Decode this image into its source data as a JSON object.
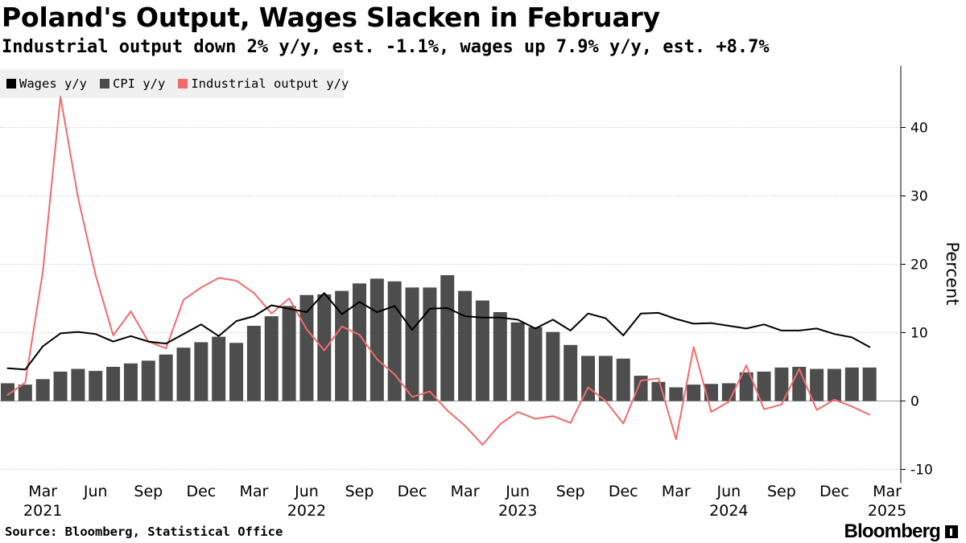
{
  "header": {
    "title": "Poland's Output, Wages Slacken in February",
    "subtitle": "Industrial output down 2% y/y, est. -1.1%, wages up 7.9% y/y, est. +8.7%"
  },
  "footer": {
    "source": "Source: Bloomberg, Statistical Office",
    "brand": "Bloomberg"
  },
  "colors": {
    "wages": "#000000",
    "cpi": "#4d4d4d",
    "industrial": "#f26b6b",
    "legend_bg": "#f0f0f0",
    "grid": "#bdbdbd"
  },
  "chart_data": {
    "type": "bar",
    "title": "Poland's Output, Wages Slacken in February",
    "ylabel": "Percent",
    "xlabel": "",
    "ylim": [
      -12,
      49
    ],
    "yticks": [
      -10,
      0,
      10,
      20,
      30,
      40
    ],
    "grid": true,
    "legend_position": "top-left",
    "x_start": "2021-01",
    "x_tick_labels": [
      {
        "month_index": 2,
        "month": "Mar",
        "year": "2021"
      },
      {
        "month_index": 5,
        "month": "Jun",
        "year": ""
      },
      {
        "month_index": 8,
        "month": "Sep",
        "year": ""
      },
      {
        "month_index": 11,
        "month": "Dec",
        "year": ""
      },
      {
        "month_index": 14,
        "month": "Mar",
        "year": ""
      },
      {
        "month_index": 17,
        "month": "Jun",
        "year": "2022"
      },
      {
        "month_index": 20,
        "month": "Sep",
        "year": ""
      },
      {
        "month_index": 23,
        "month": "Dec",
        "year": ""
      },
      {
        "month_index": 26,
        "month": "Mar",
        "year": ""
      },
      {
        "month_index": 29,
        "month": "Jun",
        "year": "2023"
      },
      {
        "month_index": 32,
        "month": "Sep",
        "year": ""
      },
      {
        "month_index": 35,
        "month": "Dec",
        "year": ""
      },
      {
        "month_index": 38,
        "month": "Mar",
        "year": ""
      },
      {
        "month_index": 41,
        "month": "Jun",
        "year": "2024"
      },
      {
        "month_index": 44,
        "month": "Sep",
        "year": ""
      },
      {
        "month_index": 47,
        "month": "Dec",
        "year": ""
      },
      {
        "month_index": 50,
        "month": "Mar",
        "year": "2025"
      }
    ],
    "series": [
      {
        "name": "Wages y/y",
        "kind": "line",
        "color": "#000000",
        "values": [
          4.8,
          4.6,
          8.0,
          9.9,
          10.1,
          9.8,
          8.7,
          9.5,
          8.7,
          8.4,
          9.8,
          11.2,
          9.5,
          11.7,
          12.4,
          14.0,
          13.5,
          13.0,
          15.8,
          12.7,
          14.5,
          13.0,
          13.9,
          10.4,
          13.5,
          13.6,
          12.4,
          12.2,
          12.2,
          11.9,
          10.6,
          11.9,
          10.3,
          12.8,
          12.1,
          9.6,
          12.8,
          12.9,
          12.0,
          11.3,
          11.4,
          11.0,
          10.6,
          11.2,
          10.3,
          10.3,
          10.6,
          9.8,
          9.3,
          7.9
        ]
      },
      {
        "name": "CPI y/y",
        "kind": "bar",
        "color": "#4d4d4d",
        "values": [
          2.6,
          2.4,
          3.2,
          4.3,
          4.7,
          4.4,
          5.0,
          5.5,
          5.9,
          6.8,
          7.8,
          8.6,
          9.4,
          8.5,
          11.0,
          12.4,
          13.9,
          15.5,
          15.6,
          16.1,
          17.2,
          17.9,
          17.5,
          16.6,
          16.6,
          18.4,
          16.1,
          14.7,
          13.0,
          11.5,
          10.8,
          10.1,
          8.2,
          6.6,
          6.6,
          6.2,
          3.7,
          2.8,
          2.0,
          2.4,
          2.5,
          2.6,
          4.2,
          4.3,
          4.9,
          5.0,
          4.7,
          4.7,
          4.9,
          4.9
        ]
      },
      {
        "name": "Industrial output y/y",
        "kind": "line",
        "color": "#f26b6b",
        "values": [
          0.9,
          2.7,
          18.9,
          44.5,
          29.8,
          18.4,
          9.6,
          13.1,
          8.7,
          7.7,
          14.8,
          16.6,
          18.0,
          17.6,
          15.8,
          12.8,
          15.0,
          10.5,
          7.4,
          10.9,
          9.7,
          6.1,
          3.9,
          0.6,
          1.4,
          -1.4,
          -3.6,
          -6.4,
          -3.4,
          -1.6,
          -2.6,
          -2.2,
          -3.2,
          2.0,
          0.0,
          -3.3,
          3.0,
          3.3,
          -5.6,
          7.9,
          -1.6,
          -0.1,
          5.2,
          -1.2,
          -0.5,
          4.7,
          -1.3,
          0.2,
          -0.8,
          -2.0
        ]
      }
    ]
  }
}
